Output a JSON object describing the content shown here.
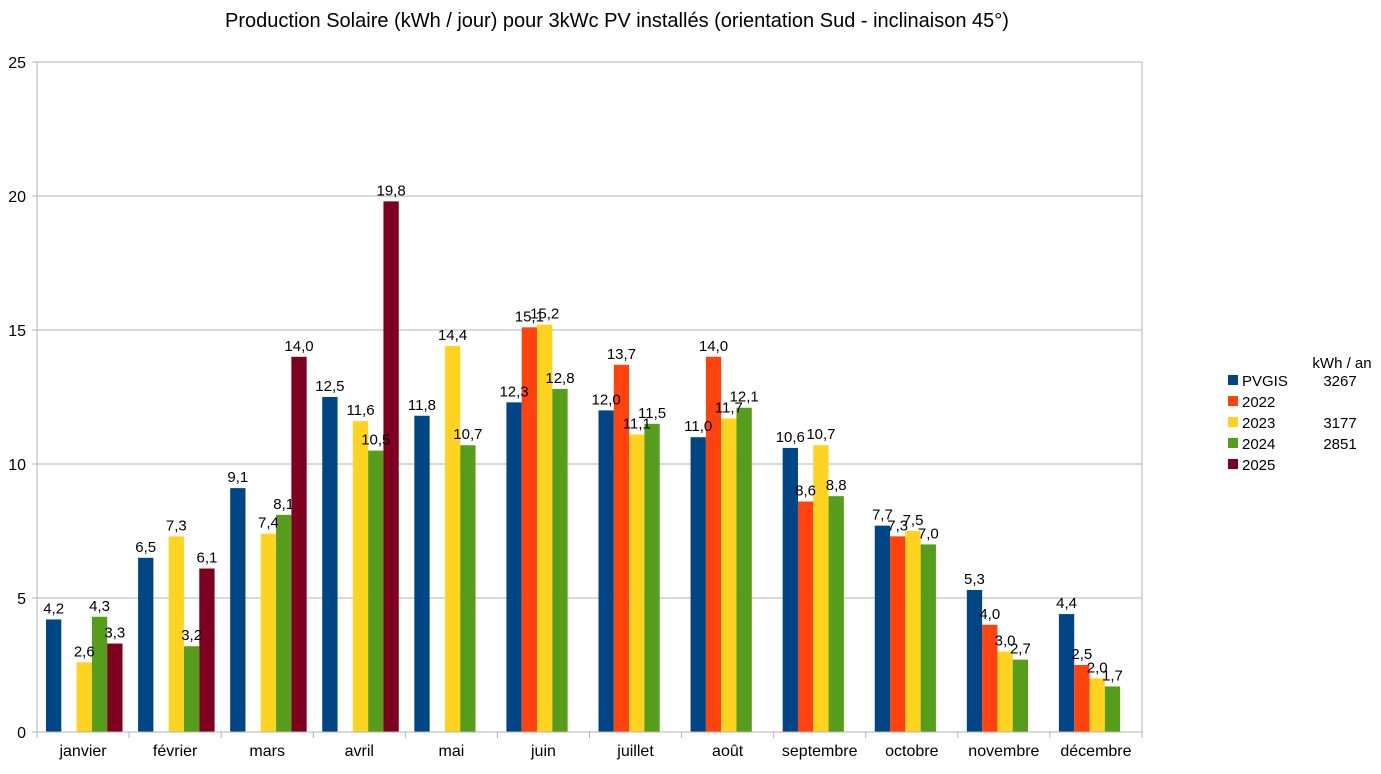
{
  "chart_data": {
    "type": "bar",
    "title": "Production Solaire (kWh / jour) pour 3kWc PV installés (orientation Sud - inclinaison 45°)",
    "xlabel": "",
    "ylabel": "",
    "ylim": [
      0,
      25
    ],
    "yticks": [
      "0",
      "5",
      "10",
      "15",
      "20",
      "25"
    ],
    "grid": true,
    "legend_position": "right",
    "categories": [
      "janvier",
      "février",
      "mars",
      "avril",
      "mai",
      "juin",
      "juillet",
      "août",
      "septembre",
      "octobre",
      "novembre",
      "décembre"
    ],
    "series": [
      {
        "name": "PVGIS",
        "color": "#004586",
        "values": [
          4.2,
          6.5,
          9.1,
          12.5,
          11.8,
          12.3,
          12.0,
          11.0,
          10.6,
          7.7,
          5.3,
          4.4
        ],
        "labels": [
          "4,2",
          "6,5",
          "9,1",
          "12,5",
          "11,8",
          "12,3",
          "12,0",
          "11,0",
          "10,6",
          "7,7",
          "5,3",
          "4,4"
        ]
      },
      {
        "name": "2022",
        "color": "#ff420e",
        "values": [
          null,
          null,
          null,
          null,
          null,
          15.1,
          13.7,
          14.0,
          8.6,
          7.3,
          4.0,
          2.5
        ],
        "labels": [
          "",
          "",
          "",
          "",
          "",
          "15,1",
          "13,7",
          "14,0",
          "8,6",
          "7,3",
          "4,0",
          "2,5"
        ]
      },
      {
        "name": "2023",
        "color": "#ffd320",
        "values": [
          2.6,
          7.3,
          7.4,
          11.6,
          14.4,
          15.2,
          11.1,
          11.7,
          10.7,
          7.5,
          3.0,
          2.0
        ],
        "labels": [
          "2,6",
          "7,3",
          "7,4",
          "11,6",
          "14,4",
          "15,2",
          "11,1",
          "11,7",
          "10,7",
          "7,5",
          "3,0",
          "2,0"
        ]
      },
      {
        "name": "2024",
        "color": "#579d1c",
        "values": [
          4.3,
          3.2,
          8.1,
          10.5,
          10.7,
          12.8,
          11.5,
          12.1,
          8.8,
          7.0,
          2.7,
          1.7
        ],
        "labels": [
          "4,3",
          "3,2",
          "8,1",
          "10,5",
          "10,7",
          "12,8",
          "11,5",
          "12,1",
          "8,8",
          "7,0",
          "2,7",
          "1,7"
        ]
      },
      {
        "name": "2025",
        "color": "#7e0021",
        "values": [
          3.3,
          6.1,
          14.0,
          19.8,
          null,
          null,
          null,
          null,
          null,
          null,
          null,
          null
        ],
        "labels": [
          "3,3",
          "6,1",
          "14,0",
          "19,8",
          "",
          "",
          "",
          "",
          "",
          "",
          "",
          ""
        ]
      }
    ],
    "legend_side_header": "kWh / an",
    "legend_side_values": [
      "3267",
      "",
      "3177",
      "2851",
      ""
    ]
  }
}
